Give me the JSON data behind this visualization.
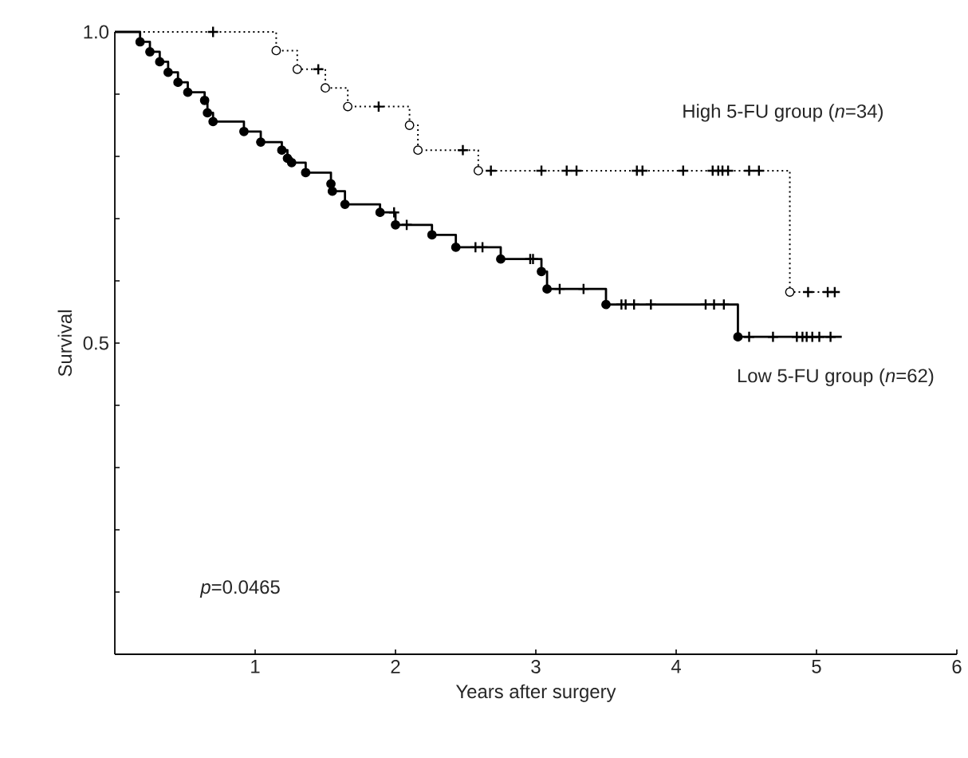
{
  "chart_data": {
    "type": "step",
    "xlabel": "Years after surgery",
    "ylabel": "Survival",
    "xlim": [
      0,
      6
    ],
    "xticks": [
      1,
      2,
      3,
      4,
      5,
      6
    ],
    "ylim": [
      0,
      1
    ],
    "yticks": [
      {
        "value": 0.1,
        "label": null
      },
      {
        "value": 0.2,
        "label": null
      },
      {
        "value": 0.3,
        "label": null
      },
      {
        "value": 0.4,
        "label": null
      },
      0.5,
      {
        "value": 0.6,
        "label": null
      },
      {
        "value": 0.7,
        "label": null
      },
      {
        "value": 0.8,
        "label": null
      },
      {
        "value": 0.9,
        "label": null
      },
      {
        "value": 1,
        "label": "1.0"
      }
    ],
    "grid": false,
    "legend": false,
    "annotations": [
      "*p*=0.0465"
    ],
    "series": [
      {
        "name": "High 5-FU group (*n*=34)",
        "line_style": "dotted",
        "color": "#000000",
        "x": [
          0,
          1.15,
          1.3,
          1.5,
          1.66,
          2.1,
          2.16,
          2.59,
          4.81,
          5.13
        ],
        "values": [
          1,
          0.97,
          0.94,
          0.91,
          0.88,
          0.85,
          0.81,
          0.777,
          0.582,
          0.582
        ]
      },
      {
        "name": "Low 5-FU group (*n*=62)",
        "line_style": "solid",
        "color": "#000000",
        "x": [
          0,
          0.18,
          0.25,
          0.32,
          0.38,
          0.45,
          0.52,
          0.64,
          0.66,
          0.7,
          0.92,
          1.04,
          1.19,
          1.23,
          1.26,
          1.36,
          1.54,
          1.55,
          1.64,
          1.89,
          2.0,
          2.26,
          2.43,
          2.75,
          3.04,
          3.08,
          3.5,
          4.44,
          5.18
        ],
        "values": [
          1,
          0.984,
          0.968,
          0.952,
          0.935,
          0.919,
          0.903,
          0.89,
          0.87,
          0.856,
          0.84,
          0.823,
          0.81,
          0.797,
          0.79,
          0.774,
          0.756,
          0.744,
          0.723,
          0.71,
          0.69,
          0.674,
          0.654,
          0.635,
          0.615,
          0.587,
          0.562,
          0.51,
          0.51
        ]
      },
      {
        "type": "scatter",
        "marker": "circle",
        "color": "#ffffff",
        "x": [
          1.15,
          1.3,
          1.5,
          1.66,
          2.1,
          2.16,
          2.59,
          4.81
        ],
        "values": [
          0.97,
          0.94,
          0.91,
          0.88,
          0.85,
          0.81,
          0.777,
          0.582
        ]
      },
      {
        "type": "scatter",
        "marker": "cross",
        "color": "#000000",
        "x": [
          0.7,
          1.45,
          1.88,
          2.48,
          2.68,
          3.04,
          3.22,
          3.29,
          3.72,
          3.76,
          4.05,
          4.26,
          4.3,
          4.33,
          4.37,
          4.52,
          4.59,
          4.94,
          5.08,
          5.13
        ],
        "values": [
          1,
          0.94,
          0.88,
          0.81,
          0.777,
          0.777,
          0.777,
          0.777,
          0.777,
          0.777,
          0.777,
          0.777,
          0.777,
          0.777,
          0.777,
          0.777,
          0.777,
          0.582,
          0.582,
          0.582
        ]
      },
      {
        "type": "scatter",
        "marker": "circle",
        "color": "#000000",
        "x": [
          0.18,
          0.25,
          0.32,
          0.38,
          0.45,
          0.52,
          0.64,
          0.66,
          0.7,
          0.92,
          1.04,
          1.19,
          1.23,
          1.26,
          1.36,
          1.54,
          1.55,
          1.64,
          1.89,
          2.0,
          2.26,
          2.43,
          2.75,
          3.04,
          3.08,
          3.5,
          4.44
        ],
        "values": [
          0.984,
          0.968,
          0.952,
          0.935,
          0.919,
          0.903,
          0.89,
          0.87,
          0.856,
          0.84,
          0.823,
          0.81,
          0.797,
          0.79,
          0.774,
          0.756,
          0.744,
          0.723,
          0.71,
          0.69,
          0.674,
          0.654,
          0.635,
          0.615,
          0.587,
          0.562,
          0.51
        ]
      },
      {
        "type": "scatter",
        "marker": "cross",
        "color": "#000000",
        "x": [
          1.99,
          2.08,
          2.57,
          2.62,
          2.96,
          2.98,
          3.17,
          3.34,
          3.61,
          3.64,
          3.7,
          3.82,
          4.21,
          4.27,
          4.34,
          4.52,
          4.69,
          4.86,
          4.9,
          4.93,
          4.97,
          5.02,
          5.1
        ],
        "values": [
          0.71,
          0.69,
          0.654,
          0.654,
          0.635,
          0.635,
          0.587,
          0.587,
          0.562,
          0.562,
          0.562,
          0.562,
          0.562,
          0.562,
          0.562,
          0.51,
          0.51,
          0.51,
          0.51,
          0.51,
          0.51,
          0.51,
          0.51
        ]
      }
    ]
  }
}
